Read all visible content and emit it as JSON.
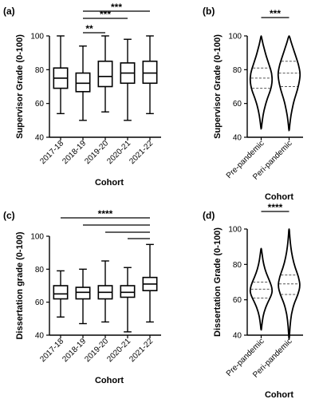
{
  "figure": {
    "panels": [
      "(a)",
      "(b)",
      "(c)",
      "(d)"
    ]
  },
  "chart_data": [
    {
      "panel": "(a)",
      "type": "box",
      "ylabel": "Supervisor Grade (0-100)",
      "xlabel": "Cohort",
      "ylim": [
        40,
        100
      ],
      "yticks": [
        40,
        60,
        80,
        100
      ],
      "categories": [
        "2017-18",
        "2018-19",
        "2019-20",
        "2020-21",
        "2021-22"
      ],
      "boxes": [
        {
          "min": 54,
          "q1": 69,
          "median": 75,
          "q3": 81,
          "max": 100
        },
        {
          "min": 50,
          "q1": 67,
          "median": 72,
          "q3": 78,
          "max": 94
        },
        {
          "min": 55,
          "q1": 70,
          "median": 76,
          "q3": 85,
          "max": 100
        },
        {
          "min": 50,
          "q1": 72,
          "median": 78,
          "q3": 84,
          "max": 98
        },
        {
          "min": 54,
          "q1": 72,
          "median": 78,
          "q3": 85,
          "max": 100
        }
      ],
      "significance": [
        {
          "from": "2018-19",
          "to": "2021-22",
          "label": "***"
        },
        {
          "from": "2018-19",
          "to": "2020-21",
          "label": "***"
        },
        {
          "from": "2018-19",
          "to": "2019-20",
          "label": "**"
        }
      ]
    },
    {
      "panel": "(b)",
      "type": "violin",
      "ylabel": "Supervisor Grade (0-100)",
      "xlabel": "Cohort",
      "ylim": [
        40,
        100
      ],
      "yticks": [
        40,
        60,
        80,
        100
      ],
      "categories": [
        "Pre-pandemic",
        "Peri-pandemic"
      ],
      "violins": [
        {
          "min": 45,
          "q1": 69,
          "median": 75,
          "q3": 81,
          "max": 100,
          "profile": [
            [
              45,
              0.02
            ],
            [
              50,
              0.1
            ],
            [
              56,
              0.25
            ],
            [
              62,
              0.5
            ],
            [
              68,
              0.85
            ],
            [
              73,
              1.0
            ],
            [
              78,
              0.95
            ],
            [
              83,
              0.7
            ],
            [
              88,
              0.45
            ],
            [
              93,
              0.25
            ],
            [
              97,
              0.1
            ],
            [
              100,
              0.02
            ]
          ]
        },
        {
          "min": 44,
          "q1": 70,
          "median": 78,
          "q3": 85,
          "max": 100,
          "profile": [
            [
              44,
              0.02
            ],
            [
              50,
              0.1
            ],
            [
              56,
              0.25
            ],
            [
              62,
              0.45
            ],
            [
              68,
              0.75
            ],
            [
              74,
              0.95
            ],
            [
              78,
              1.0
            ],
            [
              83,
              0.85
            ],
            [
              88,
              0.6
            ],
            [
              93,
              0.35
            ],
            [
              97,
              0.15
            ],
            [
              100,
              0.03
            ]
          ]
        }
      ],
      "significance": [
        {
          "from": "Pre-pandemic",
          "to": "Peri-pandemic",
          "label": "***"
        }
      ]
    },
    {
      "panel": "(c)",
      "type": "box",
      "ylabel": "Dissertation grade (0-100)",
      "xlabel": "Cohort",
      "ylim": [
        40,
        100
      ],
      "yticks": [
        40,
        60,
        80,
        100
      ],
      "categories": [
        "2017-18",
        "2018-19",
        "2019-20",
        "2020-21",
        "2021-22"
      ],
      "boxes": [
        {
          "min": 51,
          "q1": 62,
          "median": 65,
          "q3": 70,
          "max": 79
        },
        {
          "min": 47,
          "q1": 62,
          "median": 66,
          "q3": 69,
          "max": 80
        },
        {
          "min": 48,
          "q1": 62,
          "median": 66,
          "q3": 70,
          "max": 85
        },
        {
          "min": 42,
          "q1": 63,
          "median": 66,
          "q3": 70,
          "max": 81
        },
        {
          "min": 48,
          "q1": 67,
          "median": 71,
          "q3": 75,
          "max": 95
        }
      ],
      "significance": [
        {
          "from": "2017-18",
          "to": "2021-22",
          "label": "****"
        },
        {
          "from": "2018-19",
          "to": "2021-22",
          "label": ""
        },
        {
          "from": "2019-20",
          "to": "2021-22",
          "label": ""
        },
        {
          "from": "2020-21",
          "to": "2021-22",
          "label": ""
        }
      ]
    },
    {
      "panel": "(d)",
      "type": "violin",
      "ylabel": "Dissertation Grade (0-100)",
      "xlabel": "Cohort",
      "ylim": [
        40,
        100
      ],
      "yticks": [
        40,
        60,
        80,
        100
      ],
      "categories": [
        "Pre-pandemic",
        "Peri-pandemic"
      ],
      "violins": [
        {
          "min": 43,
          "q1": 61,
          "median": 66,
          "q3": 70,
          "max": 89,
          "profile": [
            [
              43,
              0.02
            ],
            [
              48,
              0.1
            ],
            [
              53,
              0.25
            ],
            [
              58,
              0.55
            ],
            [
              63,
              0.95
            ],
            [
              66,
              1.0
            ],
            [
              70,
              0.8
            ],
            [
              75,
              0.45
            ],
            [
              80,
              0.22
            ],
            [
              85,
              0.1
            ],
            [
              89,
              0.02
            ]
          ]
        },
        {
          "min": 38,
          "q1": 63,
          "median": 69,
          "q3": 74,
          "max": 100,
          "profile": [
            [
              38,
              0.02
            ],
            [
              45,
              0.08
            ],
            [
              52,
              0.2
            ],
            [
              58,
              0.45
            ],
            [
              63,
              0.8
            ],
            [
              68,
              1.0
            ],
            [
              73,
              0.85
            ],
            [
              78,
              0.55
            ],
            [
              84,
              0.3
            ],
            [
              90,
              0.15
            ],
            [
              95,
              0.07
            ],
            [
              100,
              0.02
            ]
          ]
        }
      ],
      "significance": [
        {
          "from": "Pre-pandemic",
          "to": "Peri-pandemic",
          "label": "****"
        }
      ]
    }
  ]
}
